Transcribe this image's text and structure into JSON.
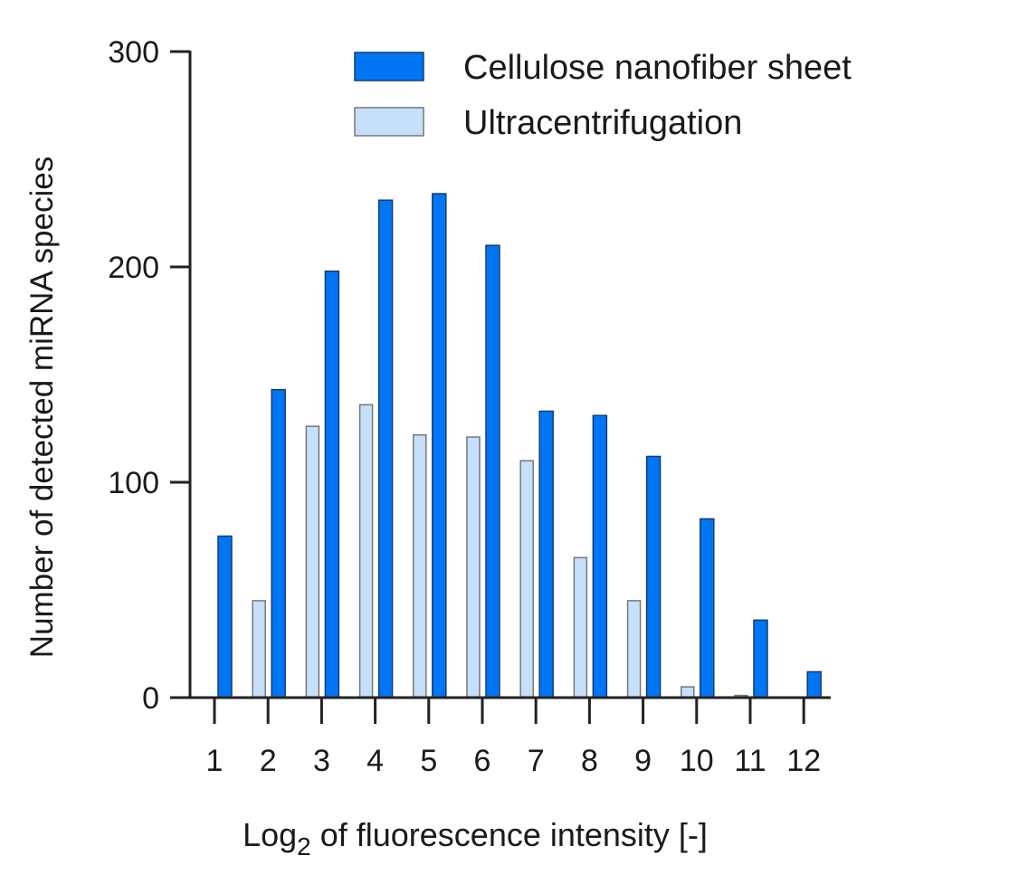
{
  "chart_data": {
    "type": "bar",
    "title": "",
    "xlabel_main": "Log",
    "xlabel_sub": "2",
    "xlabel_rest": " of fluorescence intensity [-]",
    "ylabel": "Number of detected miRNA species",
    "categories": [
      "1",
      "2",
      "3",
      "4",
      "5",
      "6",
      "7",
      "8",
      "9",
      "10",
      "11",
      "12"
    ],
    "yticks": [
      "0",
      "100",
      "200",
      "300"
    ],
    "ylim": [
      0,
      300
    ],
    "grid": false,
    "legend_position": "top-right",
    "series": [
      {
        "name": "Ultracentrifugation",
        "color": "#c6e0fb",
        "stroke": "#777777",
        "values": [
          0,
          45,
          126,
          136,
          122,
          121,
          110,
          65,
          45,
          5,
          1,
          0
        ]
      },
      {
        "name": "Cellulose nanofiber   sheet",
        "color": "#0076f5",
        "stroke": "#1a3a70",
        "values": [
          75,
          143,
          198,
          231,
          234,
          210,
          133,
          131,
          112,
          83,
          36,
          12
        ]
      }
    ],
    "legend_order": [
      1,
      0
    ]
  }
}
